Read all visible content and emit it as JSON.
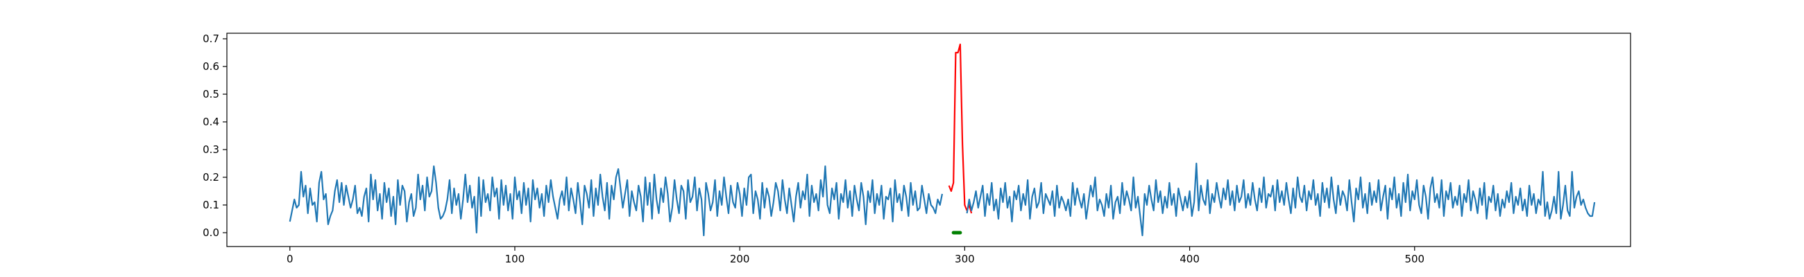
{
  "chart_data": {
    "type": "line",
    "title": "",
    "xlabel": "",
    "ylabel": "",
    "xlim": [
      -28,
      596
    ],
    "ylim": [
      -0.05,
      0.72
    ],
    "grid": false,
    "legend": "none",
    "x_ticks": [
      {
        "value": 0,
        "label": "0"
      },
      {
        "value": 100,
        "label": "100"
      },
      {
        "value": 200,
        "label": "200"
      },
      {
        "value": 300,
        "label": "300"
      },
      {
        "value": 400,
        "label": "400"
      },
      {
        "value": 500,
        "label": "500"
      }
    ],
    "y_ticks": [
      {
        "value": 0.0,
        "label": "0.0"
      },
      {
        "value": 0.1,
        "label": "0.1"
      },
      {
        "value": 0.2,
        "label": "0.2"
      },
      {
        "value": 0.3,
        "label": "0.3"
      },
      {
        "value": 0.4,
        "label": "0.4"
      },
      {
        "value": 0.5,
        "label": "0.5"
      },
      {
        "value": 0.6,
        "label": "0.6"
      },
      {
        "value": 0.7,
        "label": "0.7"
      }
    ],
    "series": [
      {
        "color": "#1f77b4",
        "x_start": 0,
        "x_step": 1,
        "values": [
          0.04,
          0.08,
          0.12,
          0.09,
          0.1,
          0.22,
          0.13,
          0.17,
          0.07,
          0.16,
          0.1,
          0.11,
          0.04,
          0.18,
          0.22,
          0.12,
          0.14,
          0.03,
          0.06,
          0.08,
          0.15,
          0.19,
          0.11,
          0.18,
          0.1,
          0.17,
          0.13,
          0.09,
          0.12,
          0.17,
          0.07,
          0.09,
          0.06,
          0.13,
          0.16,
          0.04,
          0.21,
          0.12,
          0.19,
          0.08,
          0.14,
          0.05,
          0.18,
          0.11,
          0.16,
          0.06,
          0.13,
          0.03,
          0.19,
          0.1,
          0.17,
          0.15,
          0.04,
          0.11,
          0.14,
          0.06,
          0.09,
          0.21,
          0.12,
          0.17,
          0.08,
          0.2,
          0.13,
          0.15,
          0.24,
          0.18,
          0.09,
          0.05,
          0.06,
          0.08,
          0.12,
          0.19,
          0.07,
          0.16,
          0.1,
          0.14,
          0.05,
          0.12,
          0.21,
          0.11,
          0.17,
          0.09,
          0.13,
          0.0,
          0.2,
          0.06,
          0.19,
          0.11,
          0.14,
          0.08,
          0.2,
          0.13,
          0.16,
          0.05,
          0.19,
          0.1,
          0.17,
          0.08,
          0.14,
          0.05,
          0.2,
          0.12,
          0.15,
          0.07,
          0.18,
          0.1,
          0.16,
          0.04,
          0.19,
          0.12,
          0.16,
          0.09,
          0.14,
          0.06,
          0.17,
          0.11,
          0.19,
          0.13,
          0.09,
          0.05,
          0.12,
          0.15,
          0.1,
          0.2,
          0.08,
          0.16,
          0.12,
          0.07,
          0.18,
          0.11,
          0.03,
          0.17,
          0.14,
          0.09,
          0.19,
          0.06,
          0.16,
          0.1,
          0.21,
          0.13,
          0.08,
          0.18,
          0.05,
          0.17,
          0.12,
          0.2,
          0.23,
          0.16,
          0.09,
          0.14,
          0.19,
          0.06,
          0.15,
          0.11,
          0.08,
          0.17,
          0.13,
          0.04,
          0.2,
          0.1,
          0.18,
          0.05,
          0.21,
          0.12,
          0.07,
          0.16,
          0.11,
          0.2,
          0.14,
          0.04,
          0.09,
          0.19,
          0.12,
          0.07,
          0.17,
          0.15,
          0.05,
          0.19,
          0.11,
          0.13,
          0.2,
          0.08,
          0.16,
          0.12,
          -0.01,
          0.18,
          0.14,
          0.08,
          0.11,
          0.19,
          0.06,
          0.15,
          0.1,
          0.2,
          0.13,
          0.07,
          0.17,
          0.11,
          0.09,
          0.18,
          0.14,
          0.06,
          0.16,
          0.1,
          0.2,
          0.21,
          0.07,
          0.15,
          0.12,
          0.05,
          0.18,
          0.09,
          0.16,
          0.13,
          0.06,
          0.11,
          0.18,
          0.15,
          0.08,
          0.19,
          0.12,
          0.07,
          0.16,
          0.1,
          0.04,
          0.13,
          0.18,
          0.09,
          0.15,
          0.12,
          0.21,
          0.06,
          0.17,
          0.11,
          0.14,
          0.08,
          0.19,
          0.13,
          0.24,
          0.1,
          0.07,
          0.16,
          0.12,
          0.18,
          0.05,
          0.14,
          0.11,
          0.19,
          0.09,
          0.15,
          0.06,
          0.17,
          0.12,
          0.08,
          0.18,
          0.13,
          0.03,
          0.15,
          0.11,
          0.19,
          0.07,
          0.14,
          0.1,
          0.17,
          0.05,
          0.13,
          0.12,
          0.16,
          0.04,
          0.19,
          0.11,
          0.14,
          0.08,
          0.17,
          0.13,
          0.06,
          0.18,
          0.1,
          0.15,
          0.08,
          0.09,
          0.17,
          0.12,
          0.07,
          0.14,
          0.1,
          0.09,
          0.07,
          0.12,
          0.1,
          0.14
        ],
        "data_labels": []
      },
      {
        "color": "#ff0000",
        "x_start": 293,
        "x_step": 1,
        "values": [
          0.17,
          0.15,
          0.18,
          0.65,
          0.65,
          0.68,
          0.32,
          0.1,
          0.08,
          0.1,
          0.07
        ],
        "data_labels": []
      },
      {
        "color": "#008000",
        "x_start": 295,
        "x_step": 1,
        "values": [
          0.0,
          0.0,
          0.0,
          0.0
        ],
        "data_labels": []
      },
      {
        "color": "#1f77b4",
        "x_start": 301,
        "x_step": 1,
        "values": [
          0.07,
          0.12,
          0.08,
          0.11,
          0.15,
          0.09,
          0.13,
          0.17,
          0.06,
          0.14,
          0.1,
          0.18,
          0.08,
          0.12,
          0.05,
          0.16,
          0.11,
          0.18,
          0.09,
          0.13,
          0.04,
          0.15,
          0.12,
          0.17,
          0.08,
          0.14,
          0.1,
          0.19,
          0.05,
          0.13,
          0.16,
          0.09,
          0.11,
          0.18,
          0.07,
          0.14,
          0.12,
          0.1,
          0.15,
          0.06,
          0.17,
          0.09,
          0.13,
          0.11,
          0.08,
          0.12,
          0.06,
          0.18,
          0.1,
          0.16,
          0.12,
          0.09,
          0.14,
          0.05,
          0.11,
          0.17,
          0.13,
          0.2,
          0.08,
          0.12,
          0.1,
          0.06,
          0.14,
          0.09,
          0.17,
          0.05,
          0.11,
          0.13,
          0.07,
          0.18,
          0.1,
          0.15,
          0.12,
          0.08,
          0.2,
          0.09,
          0.13,
          0.06,
          -0.01,
          0.14,
          0.1,
          0.17,
          0.12,
          0.08,
          0.19,
          0.11,
          0.15,
          0.07,
          0.13,
          0.09,
          0.18,
          0.1,
          0.14,
          0.06,
          0.16,
          0.12,
          0.08,
          0.13,
          0.09,
          0.15,
          0.06,
          0.11,
          0.25,
          0.08,
          0.17,
          0.12,
          0.1,
          0.19,
          0.07,
          0.14,
          0.11,
          0.18,
          0.13,
          0.09,
          0.16,
          0.12,
          0.19,
          0.1,
          0.15,
          0.08,
          0.17,
          0.11,
          0.13,
          0.19,
          0.09,
          0.14,
          0.1,
          0.18,
          0.12,
          0.08,
          0.16,
          0.11,
          0.2,
          0.09,
          0.14,
          0.13,
          0.17,
          0.08,
          0.19,
          0.11,
          0.15,
          0.1,
          0.18,
          0.12,
          0.07,
          0.16,
          0.09,
          0.2,
          0.13,
          0.11,
          0.17,
          0.08,
          0.15,
          0.12,
          0.19,
          0.1,
          0.14,
          0.06,
          0.18,
          0.11,
          0.16,
          0.09,
          0.2,
          0.12,
          0.07,
          0.17,
          0.1,
          0.15,
          0.13,
          0.08,
          0.19,
          0.11,
          0.04,
          0.16,
          0.12,
          0.2,
          0.09,
          0.14,
          0.07,
          0.18,
          0.1,
          0.15,
          0.11,
          0.19,
          0.08,
          0.13,
          0.17,
          0.05,
          0.16,
          0.12,
          0.2,
          0.09,
          0.14,
          0.06,
          0.18,
          0.11,
          0.21,
          0.08,
          0.15,
          0.12,
          0.19,
          0.1,
          0.07,
          0.17,
          0.13,
          0.05,
          0.16,
          0.2,
          0.11,
          0.14,
          0.09,
          0.19,
          0.06,
          0.15,
          0.12,
          0.18,
          0.09,
          0.13,
          0.1,
          0.17,
          0.06,
          0.14,
          0.11,
          0.19,
          0.08,
          0.15,
          0.12,
          0.07,
          0.16,
          0.1,
          0.18,
          0.05,
          0.13,
          0.11,
          0.17,
          0.08,
          0.14,
          0.06,
          0.12,
          0.09,
          0.15,
          0.11,
          0.18,
          0.07,
          0.13,
          0.1,
          0.16,
          0.08,
          0.12,
          0.06,
          0.17,
          0.1,
          0.14,
          0.07,
          0.12,
          0.1,
          0.22,
          0.06,
          0.11,
          0.05,
          0.08,
          0.13,
          0.07,
          0.22,
          0.05,
          0.1,
          0.17,
          0.08,
          0.06,
          0.22,
          0.09,
          0.13,
          0.15,
          0.1,
          0.12,
          0.09,
          0.07,
          0.06,
          0.06,
          0.11
        ],
        "data_labels": []
      }
    ]
  }
}
